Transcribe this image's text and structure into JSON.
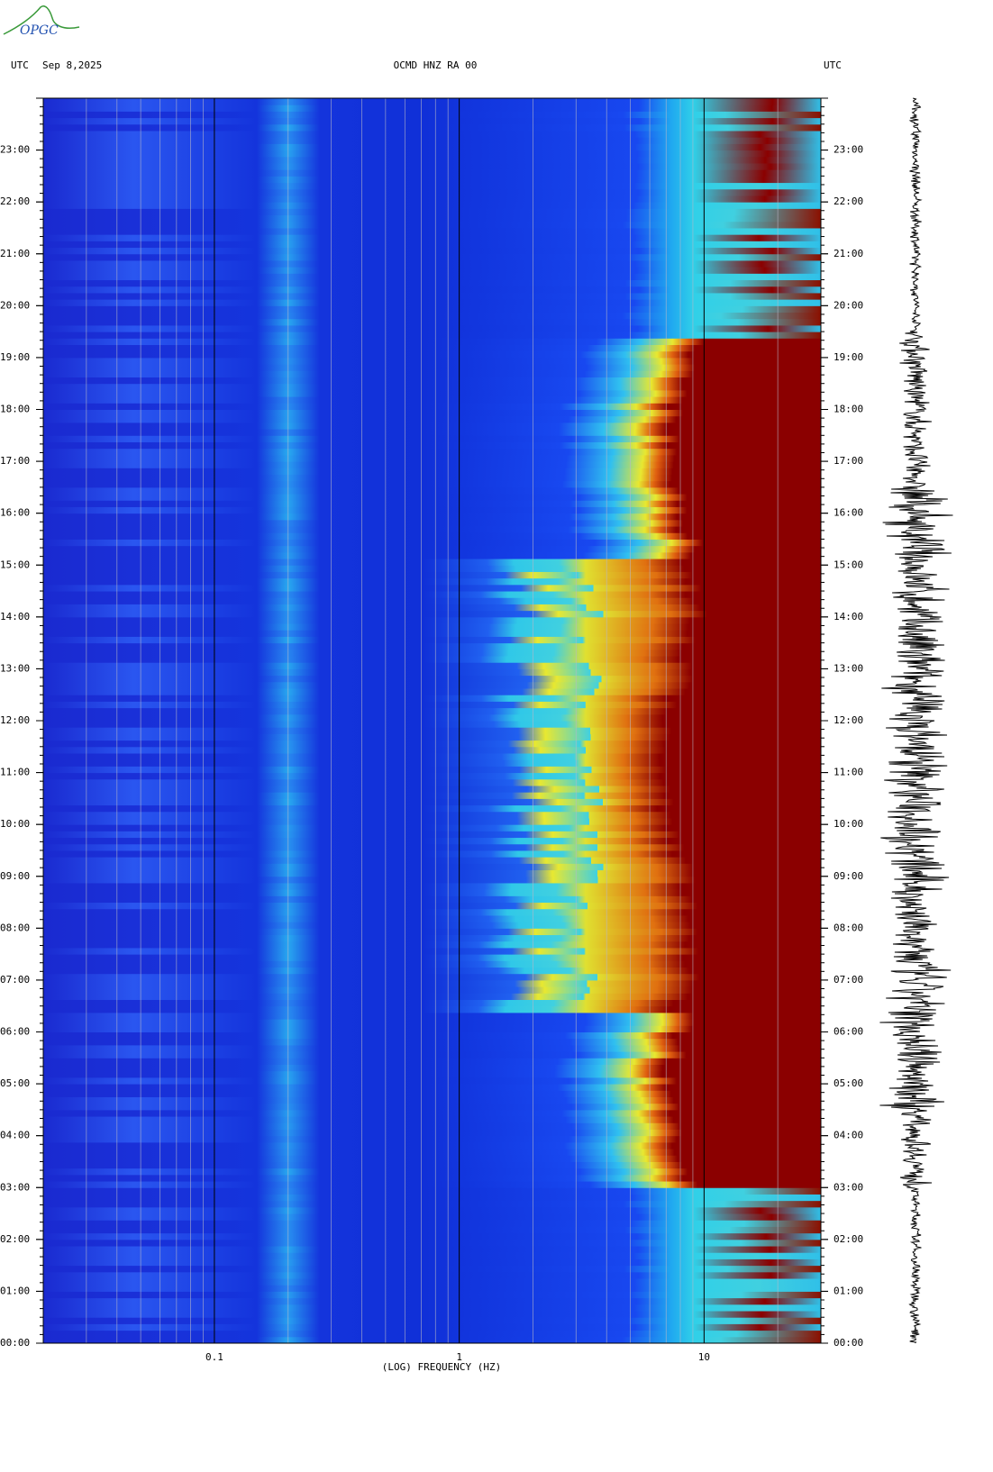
{
  "chart_data": {
    "type": "spectrogram",
    "logo": "OPGC",
    "time_label": "UTC",
    "date": "Sep 8,2025",
    "title": "OCMD HNZ RA 00",
    "xlabel": "(LOG) FREQUENCY (HZ)",
    "xscale": "log",
    "xlim": [
      0.02,
      30
    ],
    "xticks": [
      0.1,
      1,
      10
    ],
    "ylim": [
      0,
      24
    ],
    "yticks": [
      {
        "value": 0,
        "label": "00:00"
      },
      {
        "value": 1,
        "label": "01:00"
      },
      {
        "value": 2,
        "label": "02:00"
      },
      {
        "value": 3,
        "label": "03:00"
      },
      {
        "value": 4,
        "label": "04:00"
      },
      {
        "value": 5,
        "label": "05:00"
      },
      {
        "value": 6,
        "label": "06:00"
      },
      {
        "value": 7,
        "label": "07:00"
      },
      {
        "value": 8,
        "label": "08:00"
      },
      {
        "value": 9,
        "label": "09:00"
      },
      {
        "value": 10,
        "label": "10:00"
      },
      {
        "value": 11,
        "label": "11:00"
      },
      {
        "value": 12,
        "label": "12:00"
      },
      {
        "value": 13,
        "label": "13:00"
      },
      {
        "value": 14,
        "label": "14:00"
      },
      {
        "value": 15,
        "label": "15:00"
      },
      {
        "value": 16,
        "label": "16:00"
      },
      {
        "value": 17,
        "label": "17:00"
      },
      {
        "value": 18,
        "label": "18:00"
      },
      {
        "value": 19,
        "label": "19:00"
      },
      {
        "value": 20,
        "label": "20:00"
      },
      {
        "value": 21,
        "label": "21:00"
      },
      {
        "value": 22,
        "label": "22:00"
      },
      {
        "value": 23,
        "label": "23:00"
      }
    ]
  }
}
